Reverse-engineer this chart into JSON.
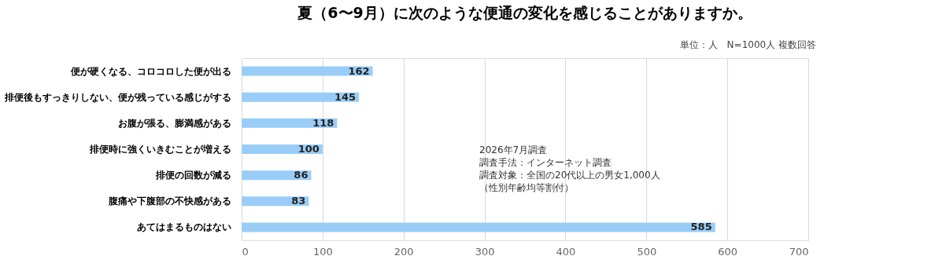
{
  "chart_data": {
    "type": "bar",
    "orientation": "horizontal",
    "title": "夏（6〜9月）に次のような便通の変化を感じることがありますか。",
    "subtitle": "単位：人　N=1000人 複数回答",
    "categories": [
      "便が硬くなる、コロコロした便が出る",
      "排便後もすっきりしない、便が残っている感じがする",
      "お腹が張る、膨満感がある",
      "排便時に強くいきむことが増える",
      "排便の回数が減る",
      "腹痛や下腹部の不快感がある",
      "あてはまるものはない"
    ],
    "values": [
      162,
      145,
      118,
      100,
      86,
      83,
      585
    ],
    "color": "#99cdf7",
    "xlim": [
      0,
      700
    ],
    "xticks": [
      0,
      100,
      200,
      300,
      400,
      500,
      600,
      700
    ],
    "grid": "x",
    "data_labels": true,
    "annotations": [
      "2026年7月調査",
      "調査手法：インターネット調査",
      "調査対象：全国の20代以上の男女1,000人",
      "（性別年齢均等割付）"
    ]
  }
}
